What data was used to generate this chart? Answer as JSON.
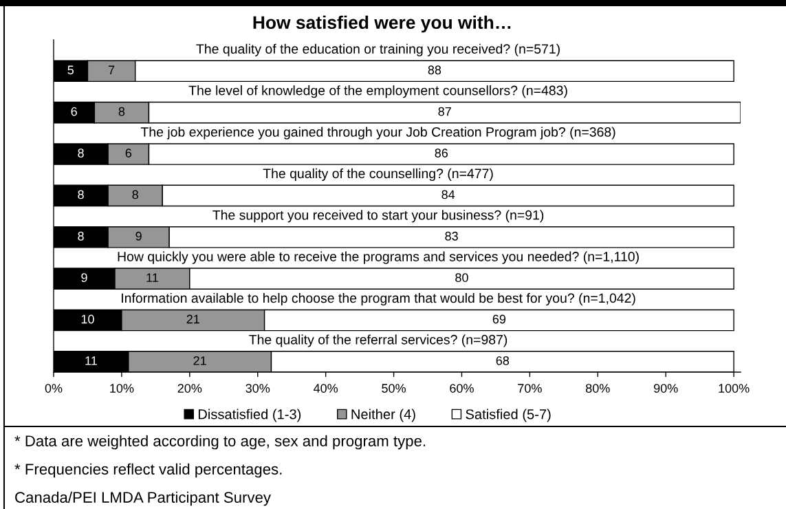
{
  "chart_data": {
    "type": "bar",
    "orientation": "horizontal",
    "stacked": true,
    "title": "How satisfied were you with…",
    "categories": [
      "The quality of the education or training you received? (n=571)",
      "The level of knowledge of the employment counsellors? (n=483)",
      "The job experience you gained through your Job Creation Program job? (n=368)",
      "The quality of the counselling? (n=477)",
      "The support you received to start your business? (n=91)",
      "How quickly you were able to receive the programs and services you needed? (n=1,110)",
      "Information available to help choose the program that would be best for you? (n=1,042)",
      "The quality of the referral services? (n=987)"
    ],
    "series": [
      {
        "name": "Dissatisfied (1-3)",
        "color": "#000000",
        "values": [
          5,
          6,
          8,
          8,
          8,
          9,
          10,
          11
        ]
      },
      {
        "name": "Neither (4)",
        "color": "#969696",
        "values": [
          7,
          8,
          6,
          8,
          9,
          11,
          21,
          21
        ]
      },
      {
        "name": "Satisfied (5-7)",
        "color": "#ffffff",
        "values": [
          88,
          87,
          86,
          84,
          83,
          80,
          69,
          68
        ]
      }
    ],
    "xlim": [
      0,
      101
    ],
    "xticks": [
      {
        "value": 0,
        "label": "0%"
      },
      {
        "value": 10,
        "label": "10%"
      },
      {
        "value": 20,
        "label": "20%"
      },
      {
        "value": 30,
        "label": "30%"
      },
      {
        "value": 40,
        "label": "40%"
      },
      {
        "value": 50,
        "label": "50%"
      },
      {
        "value": 60,
        "label": "60%"
      },
      {
        "value": 70,
        "label": "70%"
      },
      {
        "value": 80,
        "label": "80%"
      },
      {
        "value": 90,
        "label": "90%"
      },
      {
        "value": 100,
        "label": "100%"
      }
    ],
    "data_labels": true,
    "legend": "bottom",
    "annotations": [
      "* Data are weighted according to age, sex and program type.",
      "* Frequencies reflect valid percentages.",
      "Canada/PEI LMDA Participant Survey"
    ]
  }
}
